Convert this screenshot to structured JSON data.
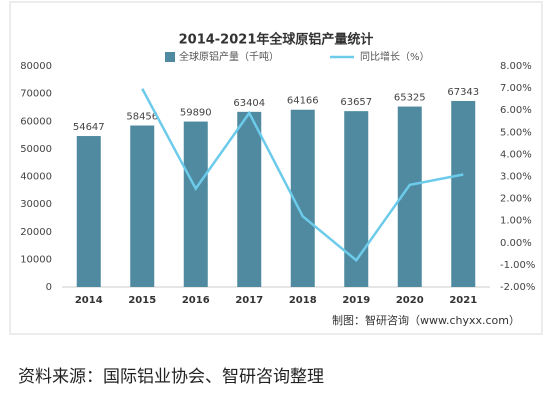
{
  "chart_data": {
    "type": "bar-line",
    "title": "2014-2021年全球原铝产量统计",
    "categories": [
      "2014",
      "2015",
      "2016",
      "2017",
      "2018",
      "2019",
      "2020",
      "2021"
    ],
    "series": [
      {
        "name": "全球原铝产量（千吨）",
        "type": "bar",
        "color": "#4f8aa1",
        "values": [
          54647,
          58456,
          59890,
          63404,
          64166,
          63657,
          65325,
          67343
        ]
      },
      {
        "name": "同比增长（%）",
        "type": "line",
        "axis": "y2",
        "color": "#6ccbea",
        "values": [
          null,
          6.97,
          2.45,
          5.87,
          1.2,
          -0.79,
          2.62,
          3.09
        ]
      }
    ],
    "ylim": [
      0,
      80000
    ],
    "yticks": [
      0,
      10000,
      20000,
      30000,
      40000,
      50000,
      60000,
      70000,
      80000
    ],
    "y2lim": [
      -2,
      8
    ],
    "y2ticks": [
      {
        "value": -2,
        "label": "-2.00%"
      },
      {
        "value": -1,
        "label": "-1.00%"
      },
      {
        "value": 0,
        "label": "0.00%"
      },
      {
        "value": 1,
        "label": "1.00%"
      },
      {
        "value": 2,
        "label": "2.00%"
      },
      {
        "value": 3,
        "label": "3.00%"
      },
      {
        "value": 4,
        "label": "4.00%"
      },
      {
        "value": 5,
        "label": "5.00%"
      },
      {
        "value": 6,
        "label": "6.00%"
      },
      {
        "value": 7,
        "label": "7.00%"
      },
      {
        "value": 8,
        "label": "8.00%"
      }
    ],
    "credit": "制图：智研咨询（www.chyxx.com）",
    "source": "资料来源：国际铝业协会、智研咨询整理"
  }
}
